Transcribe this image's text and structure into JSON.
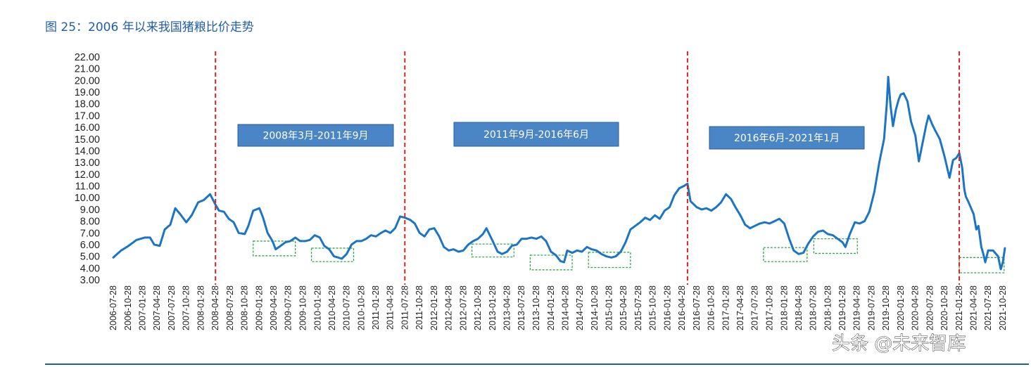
{
  "figure": {
    "title": "图 25：2006 年以来我国猪粮比价走势"
  },
  "watermark": "头条 @未来智库",
  "colors": {
    "title": "#1f5fa8",
    "line": "#1b75c4",
    "divider": "#e0201b",
    "box_fill": "#4a86c5",
    "box_border": "#2d5f96",
    "highlight": "#2ea84a",
    "bottom_rule": "#1f5fa8"
  },
  "chart_data": {
    "type": "line",
    "ylim": [
      3,
      22
    ],
    "yticks": [
      "3.00",
      "4.00",
      "5.00",
      "6.00",
      "7.00",
      "8.00",
      "9.00",
      "10.00",
      "11.00",
      "12.00",
      "13.00",
      "14.00",
      "15.00",
      "16.00",
      "17.00",
      "18.00",
      "19.00",
      "20.00",
      "21.00",
      "22.00"
    ],
    "xrange": [
      "2006-07-28",
      "2021-10-28"
    ],
    "xticks": [
      "2006-07-28",
      "2006-10-28",
      "2007-01-28",
      "2007-04-28",
      "2007-07-28",
      "2007-10-28",
      "2008-01-28",
      "2008-04-28",
      "2008-07-28",
      "2008-10-28",
      "2009-01-28",
      "2009-04-28",
      "2009-07-28",
      "2009-10-28",
      "2010-01-28",
      "2010-04-28",
      "2010-07-28",
      "2010-10-28",
      "2011-01-28",
      "2011-04-28",
      "2011-07-28",
      "2011-10-28",
      "2012-01-28",
      "2012-04-28",
      "2012-07-28",
      "2012-10-28",
      "2013-01-28",
      "2013-04-28",
      "2013-07-28",
      "2013-10-28",
      "2014-01-28",
      "2014-04-28",
      "2014-07-28",
      "2014-10-28",
      "2015-01-28",
      "2015-04-28",
      "2015-07-28",
      "2015-10-28",
      "2016-01-28",
      "2016-04-28",
      "2016-07-28",
      "2016-10-28",
      "2017-01-28",
      "2017-04-28",
      "2017-07-28",
      "2017-10-28",
      "2018-01-28",
      "2018-04-28",
      "2018-07-28",
      "2018-10-28",
      "2019-01-28",
      "2019-04-28",
      "2019-07-28",
      "2019-10-28",
      "2020-01-28",
      "2020-04-28",
      "2020-07-28",
      "2020-10-28",
      "2021-01-28",
      "2021-04-28",
      "2021-07-28",
      "2021-10-28"
    ],
    "series": [
      {
        "points": [
          [
            "2006-07-28",
            4.9
          ],
          [
            "2006-09-15",
            5.5
          ],
          [
            "2006-11-01",
            5.9
          ],
          [
            "2006-12-20",
            6.4
          ],
          [
            "2007-02-10",
            6.6
          ],
          [
            "2007-03-15",
            6.6
          ],
          [
            "2007-04-10",
            6.0
          ],
          [
            "2007-05-15",
            5.9
          ],
          [
            "2007-06-15",
            7.3
          ],
          [
            "2007-07-20",
            7.7
          ],
          [
            "2007-08-20",
            9.1
          ],
          [
            "2007-09-20",
            8.6
          ],
          [
            "2007-10-28",
            7.9
          ],
          [
            "2007-12-01",
            8.5
          ],
          [
            "2008-01-10",
            9.6
          ],
          [
            "2008-02-15",
            9.8
          ],
          [
            "2008-03-25",
            10.3
          ],
          [
            "2008-04-28",
            9.4
          ],
          [
            "2008-05-20",
            8.9
          ],
          [
            "2008-06-20",
            8.8
          ],
          [
            "2008-07-20",
            8.2
          ],
          [
            "2008-08-20",
            7.9
          ],
          [
            "2008-09-20",
            7.0
          ],
          [
            "2008-10-28",
            6.9
          ],
          [
            "2008-11-20",
            7.6
          ],
          [
            "2008-12-20",
            8.9
          ],
          [
            "2009-01-28",
            9.1
          ],
          [
            "2009-02-20",
            8.3
          ],
          [
            "2009-03-20",
            7.0
          ],
          [
            "2009-04-20",
            6.3
          ],
          [
            "2009-05-10",
            5.6
          ],
          [
            "2009-06-10",
            5.9
          ],
          [
            "2009-07-10",
            6.2
          ],
          [
            "2009-08-10",
            6.3
          ],
          [
            "2009-09-10",
            6.6
          ],
          [
            "2009-10-10",
            6.3
          ],
          [
            "2009-11-10",
            6.3
          ],
          [
            "2009-12-10",
            6.4
          ],
          [
            "2010-01-10",
            6.8
          ],
          [
            "2010-02-10",
            6.6
          ],
          [
            "2010-03-10",
            5.9
          ],
          [
            "2010-04-10",
            5.6
          ],
          [
            "2010-05-10",
            5.0
          ],
          [
            "2010-06-05",
            4.9
          ],
          [
            "2010-06-28",
            4.8
          ],
          [
            "2010-07-28",
            5.2
          ],
          [
            "2010-08-28",
            6.0
          ],
          [
            "2010-09-28",
            6.3
          ],
          [
            "2010-10-28",
            6.3
          ],
          [
            "2010-11-28",
            6.5
          ],
          [
            "2010-12-28",
            6.8
          ],
          [
            "2011-01-28",
            6.7
          ],
          [
            "2011-02-28",
            7.0
          ],
          [
            "2011-03-28",
            7.2
          ],
          [
            "2011-04-28",
            7.0
          ],
          [
            "2011-05-28",
            7.4
          ],
          [
            "2011-06-28",
            8.4
          ],
          [
            "2011-07-28",
            8.3
          ],
          [
            "2011-09-01",
            8.1
          ],
          [
            "2011-09-28",
            7.8
          ],
          [
            "2011-10-28",
            7.0
          ],
          [
            "2011-11-28",
            6.7
          ],
          [
            "2011-12-28",
            7.3
          ],
          [
            "2012-01-28",
            7.4
          ],
          [
            "2012-02-28",
            6.7
          ],
          [
            "2012-03-28",
            5.8
          ],
          [
            "2012-04-28",
            5.5
          ],
          [
            "2012-05-28",
            5.6
          ],
          [
            "2012-06-28",
            5.4
          ],
          [
            "2012-07-28",
            5.5
          ],
          [
            "2012-08-28",
            6.0
          ],
          [
            "2012-09-28",
            6.3
          ],
          [
            "2012-10-28",
            6.5
          ],
          [
            "2012-11-28",
            6.9
          ],
          [
            "2012-12-20",
            7.4
          ],
          [
            "2013-01-28",
            6.3
          ],
          [
            "2013-02-28",
            5.4
          ],
          [
            "2013-03-28",
            5.2
          ],
          [
            "2013-04-28",
            5.4
          ],
          [
            "2013-05-28",
            5.9
          ],
          [
            "2013-06-28",
            6.0
          ],
          [
            "2013-07-28",
            6.5
          ],
          [
            "2013-08-28",
            6.5
          ],
          [
            "2013-09-28",
            6.6
          ],
          [
            "2013-10-28",
            6.5
          ],
          [
            "2013-11-28",
            6.7
          ],
          [
            "2013-12-28",
            6.3
          ],
          [
            "2014-01-28",
            5.4
          ],
          [
            "2014-02-28",
            5.1
          ],
          [
            "2014-03-28",
            4.6
          ],
          [
            "2014-04-20",
            4.5
          ],
          [
            "2014-05-10",
            5.5
          ],
          [
            "2014-06-10",
            5.3
          ],
          [
            "2014-07-10",
            5.5
          ],
          [
            "2014-08-10",
            5.4
          ],
          [
            "2014-09-10",
            5.8
          ],
          [
            "2014-10-10",
            5.6
          ],
          [
            "2014-11-10",
            5.5
          ],
          [
            "2014-12-10",
            5.2
          ],
          [
            "2015-01-10",
            5.0
          ],
          [
            "2015-02-10",
            4.9
          ],
          [
            "2015-03-10",
            5.0
          ],
          [
            "2015-04-10",
            5.4
          ],
          [
            "2015-05-10",
            6.2
          ],
          [
            "2015-06-10",
            7.3
          ],
          [
            "2015-07-10",
            7.6
          ],
          [
            "2015-08-10",
            7.9
          ],
          [
            "2015-09-10",
            8.3
          ],
          [
            "2015-10-10",
            8.1
          ],
          [
            "2015-11-10",
            8.5
          ],
          [
            "2015-12-10",
            8.2
          ],
          [
            "2016-01-10",
            8.9
          ],
          [
            "2016-02-10",
            9.2
          ],
          [
            "2016-03-10",
            10.2
          ],
          [
            "2016-04-10",
            10.8
          ],
          [
            "2016-05-10",
            11.0
          ],
          [
            "2016-06-01",
            11.2
          ],
          [
            "2016-06-20",
            9.7
          ],
          [
            "2016-07-28",
            9.2
          ],
          [
            "2016-08-28",
            9.0
          ],
          [
            "2016-09-28",
            9.1
          ],
          [
            "2016-10-28",
            8.9
          ],
          [
            "2016-11-28",
            9.2
          ],
          [
            "2016-12-28",
            9.6
          ],
          [
            "2017-01-28",
            10.3
          ],
          [
            "2017-02-28",
            9.9
          ],
          [
            "2017-03-28",
            9.2
          ],
          [
            "2017-04-28",
            8.5
          ],
          [
            "2017-05-28",
            7.7
          ],
          [
            "2017-06-28",
            7.4
          ],
          [
            "2017-07-28",
            7.6
          ],
          [
            "2017-08-28",
            7.8
          ],
          [
            "2017-09-28",
            7.9
          ],
          [
            "2017-10-28",
            7.8
          ],
          [
            "2017-11-28",
            8.0
          ],
          [
            "2017-12-28",
            8.2
          ],
          [
            "2018-01-28",
            7.8
          ],
          [
            "2018-02-28",
            6.5
          ],
          [
            "2018-03-28",
            5.5
          ],
          [
            "2018-04-28",
            5.2
          ],
          [
            "2018-05-28",
            5.3
          ],
          [
            "2018-06-28",
            6.1
          ],
          [
            "2018-07-28",
            6.7
          ],
          [
            "2018-08-28",
            7.1
          ],
          [
            "2018-09-28",
            7.2
          ],
          [
            "2018-10-28",
            6.9
          ],
          [
            "2018-11-28",
            6.8
          ],
          [
            "2018-12-28",
            6.5
          ],
          [
            "2019-01-28",
            6.2
          ],
          [
            "2019-02-15",
            5.8
          ],
          [
            "2019-03-15",
            6.9
          ],
          [
            "2019-04-15",
            7.9
          ],
          [
            "2019-05-15",
            7.8
          ],
          [
            "2019-06-15",
            8.0
          ],
          [
            "2019-07-15",
            8.8
          ],
          [
            "2019-08-15",
            10.5
          ],
          [
            "2019-09-15",
            13.0
          ],
          [
            "2019-10-15",
            15.0
          ],
          [
            "2019-11-01",
            18.0
          ],
          [
            "2019-11-10",
            20.3
          ],
          [
            "2019-11-25",
            17.8
          ],
          [
            "2019-12-10",
            16.1
          ],
          [
            "2019-12-28",
            17.5
          ],
          [
            "2020-01-15",
            18.4
          ],
          [
            "2020-01-28",
            18.8
          ],
          [
            "2020-02-15",
            18.9
          ],
          [
            "2020-03-10",
            18.2
          ],
          [
            "2020-04-01",
            16.5
          ],
          [
            "2020-04-28",
            15.3
          ],
          [
            "2020-05-20",
            13.1
          ],
          [
            "2020-06-10",
            14.5
          ],
          [
            "2020-07-05",
            16.2
          ],
          [
            "2020-07-20",
            17.0
          ],
          [
            "2020-08-10",
            16.3
          ],
          [
            "2020-08-28",
            15.8
          ],
          [
            "2020-09-28",
            15.0
          ],
          [
            "2020-10-28",
            13.5
          ],
          [
            "2020-11-28",
            11.7
          ],
          [
            "2020-12-20",
            13.2
          ],
          [
            "2021-01-10",
            13.4
          ],
          [
            "2021-01-28",
            13.8
          ],
          [
            "2021-02-15",
            12.6
          ],
          [
            "2021-03-01",
            10.7
          ],
          [
            "2021-03-10",
            10.1
          ],
          [
            "2021-03-28",
            9.6
          ],
          [
            "2021-04-28",
            8.6
          ],
          [
            "2021-05-15",
            7.3
          ],
          [
            "2021-05-28",
            7.6
          ],
          [
            "2021-06-15",
            5.8
          ],
          [
            "2021-06-28",
            5.2
          ],
          [
            "2021-07-10",
            4.5
          ],
          [
            "2021-07-28",
            5.5
          ],
          [
            "2021-08-28",
            5.5
          ],
          [
            "2021-09-28",
            5.0
          ],
          [
            "2021-10-15",
            3.9
          ],
          [
            "2021-10-28",
            4.5
          ],
          [
            "2021-11-10",
            5.7
          ]
        ]
      }
    ],
    "dividers": [
      "2008-04-28",
      "2011-07-28",
      "2016-06-01",
      "2021-01-28"
    ],
    "period_labels": [
      "2008年3月-2011年9月",
      "2011年9月-2016年6月",
      "2016年6月-2021年1月"
    ],
    "troughs": [
      {
        "from": "2008-12-20",
        "to": "2009-09-10",
        "ymin": 5.05,
        "ymax": 6.3
      },
      {
        "from": "2009-12-20",
        "to": "2010-09-10",
        "ymin": 4.55,
        "ymax": 5.7
      },
      {
        "from": "2012-09-20",
        "to": "2013-06-10",
        "ymin": 4.95,
        "ymax": 6.05
      },
      {
        "from": "2013-09-20",
        "to": "2014-06-10",
        "ymin": 3.85,
        "ymax": 5.1
      },
      {
        "from": "2014-09-20",
        "to": "2015-06-10",
        "ymin": 4.05,
        "ymax": 5.35
      },
      {
        "from": "2017-09-20",
        "to": "2018-06-20",
        "ymin": 4.55,
        "ymax": 5.75
      },
      {
        "from": "2018-08-01",
        "to": "2019-05-01",
        "ymin": 5.25,
        "ymax": 6.5
      },
      {
        "from": "2021-01-28",
        "to": "2021-11-05",
        "ymin": 3.6,
        "ymax": 4.9
      }
    ]
  }
}
